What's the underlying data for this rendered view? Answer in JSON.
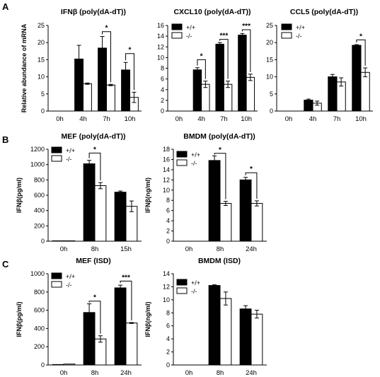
{
  "panel_labels": [
    "A",
    "B",
    "C"
  ],
  "legend": {
    "wt": "+/+",
    "ko": "-/-"
  },
  "colors": {
    "wt": "#000000",
    "ko": "#ffffff",
    "axis": "#000000"
  },
  "chart_data": [
    {
      "id": "a1",
      "type": "bar",
      "panel": "A",
      "title": "IFNβ (poly(dA-dT))",
      "ylabel": "Relative abundance of mRNA",
      "categories": [
        "0h",
        "4h",
        "7h",
        "10h"
      ],
      "ylim": [
        0,
        25
      ],
      "yticks": [
        0,
        5,
        10,
        15,
        20,
        25
      ],
      "series": [
        {
          "name": "+/+",
          "values": [
            0,
            15.2,
            18.4,
            12.0
          ],
          "errors": [
            0,
            4.0,
            3.4,
            2.2
          ]
        },
        {
          "name": "-/-",
          "values": [
            0,
            8.0,
            7.6,
            4.0
          ],
          "errors": [
            0,
            0.2,
            0.2,
            1.5
          ]
        }
      ],
      "significance": [
        {
          "category": "7h",
          "label": "*",
          "level": 23.2
        },
        {
          "category": "10h",
          "label": "*",
          "level": 16.8
        }
      ],
      "legend_shown": false
    },
    {
      "id": "a2",
      "type": "bar",
      "panel": "A",
      "title": "CXCL10 (poly(dA-dT))",
      "ylabel": "",
      "categories": [
        "0h",
        "4h",
        "7h",
        "10h"
      ],
      "ylim": [
        0,
        16
      ],
      "yticks": [
        0,
        2,
        4,
        6,
        8,
        10,
        12,
        14,
        16
      ],
      "series": [
        {
          "name": "+/+",
          "values": [
            0,
            7.7,
            12.5,
            14.2
          ],
          "errors": [
            0,
            0.4,
            0.3,
            0.3
          ]
        },
        {
          "name": "-/-",
          "values": [
            0,
            5.0,
            5.0,
            6.3
          ],
          "errors": [
            0,
            0.6,
            0.6,
            0.6
          ]
        }
      ],
      "significance": [
        {
          "category": "4h",
          "label": "*",
          "level": 9.6
        },
        {
          "category": "7h",
          "label": "***",
          "level": 13.4
        },
        {
          "category": "10h",
          "label": "***",
          "level": 15.2
        }
      ],
      "legend_shown": true
    },
    {
      "id": "a3",
      "type": "bar",
      "panel": "A",
      "title": "CCL5 (poly(dA-dT))",
      "ylabel": "",
      "categories": [
        "0h",
        "4h",
        "7h",
        "10h"
      ],
      "ylim": [
        0,
        25
      ],
      "yticks": [
        0,
        5,
        10,
        15,
        20,
        25
      ],
      "series": [
        {
          "name": "+/+",
          "values": [
            0,
            3.2,
            10.0,
            19.2
          ],
          "errors": [
            0,
            0.3,
            0.7,
            0.2
          ]
        },
        {
          "name": "-/-",
          "values": [
            0,
            2.3,
            8.5,
            11.3
          ],
          "errors": [
            0,
            0.6,
            1.2,
            1.3
          ]
        }
      ],
      "significance": [
        {
          "category": "10h",
          "label": "*",
          "level": 20.8
        }
      ],
      "legend_shown": true
    },
    {
      "id": "b1",
      "type": "bar",
      "panel": "B",
      "title": "MEF (poly(dA-dT))",
      "ylabel": "IFNβ(pg/ml)",
      "categories": [
        "0h",
        "8h",
        "15h"
      ],
      "ylim": [
        0,
        1200
      ],
      "yticks": [
        0,
        200,
        400,
        600,
        800,
        1000,
        1200
      ],
      "series": [
        {
          "name": "+/+",
          "values": [
            5,
            1010,
            640
          ],
          "errors": [
            0,
            45,
            15
          ]
        },
        {
          "name": "-/-",
          "values": [
            5,
            725,
            455
          ],
          "errors": [
            0,
            40,
            70
          ]
        }
      ],
      "significance": [
        {
          "category": "8h",
          "label": "*",
          "level": 1150
        }
      ],
      "legend_shown": true
    },
    {
      "id": "b2",
      "type": "bar",
      "panel": "B",
      "title": "BMDM (poly(dA-dT))",
      "ylabel": "IFNβ(ng/ml)",
      "categories": [
        "0h",
        "8h",
        "24h"
      ],
      "ylim": [
        0,
        18
      ],
      "yticks": [
        0,
        2,
        4,
        6,
        8,
        10,
        12,
        14,
        16,
        18
      ],
      "series": [
        {
          "name": "+/+",
          "values": [
            0,
            15.8,
            12.0
          ],
          "errors": [
            0,
            0.9,
            0.5
          ]
        },
        {
          "name": "-/-",
          "values": [
            0,
            7.4,
            7.4
          ],
          "errors": [
            0,
            0.4,
            0.5
          ]
        }
      ],
      "significance": [
        {
          "category": "8h",
          "label": "*",
          "level": 17.2
        },
        {
          "category": "24h",
          "label": "*",
          "level": 13.4
        }
      ],
      "legend_shown": true
    },
    {
      "id": "c1",
      "type": "bar",
      "panel": "C",
      "title": "MEF (ISD)",
      "ylabel": "IFNβ(pg/ml)",
      "categories": [
        "0h",
        "8h",
        "24h"
      ],
      "ylim": [
        0,
        1000
      ],
      "yticks": [
        0,
        200,
        400,
        600,
        800,
        1000
      ],
      "series": [
        {
          "name": "+/+",
          "values": [
            5,
            575,
            845
          ],
          "errors": [
            0,
            95,
            30
          ]
        },
        {
          "name": "-/-",
          "values": [
            10,
            285,
            460
          ],
          "errors": [
            0,
            35,
            5
          ]
        }
      ],
      "significance": [
        {
          "category": "8h",
          "label": "*",
          "level": 700
        },
        {
          "category": "24h",
          "label": "***",
          "level": 920
        }
      ],
      "legend_shown": true
    },
    {
      "id": "c2",
      "type": "bar",
      "panel": "C",
      "title": "BMDM (ISD)",
      "ylabel": "IFNβ(ng/ml)",
      "categories": [
        "0h",
        "8h",
        "24h"
      ],
      "ylim": [
        0,
        14
      ],
      "yticks": [
        0,
        2,
        4,
        6,
        8,
        10,
        12,
        14
      ],
      "series": [
        {
          "name": "+/+",
          "values": [
            0,
            12.2,
            8.6
          ],
          "errors": [
            0,
            0.1,
            0.5
          ]
        },
        {
          "name": "-/-",
          "values": [
            0,
            10.2,
            7.8
          ],
          "errors": [
            0,
            1.0,
            0.6
          ]
        }
      ],
      "significance": [],
      "legend_shown": true
    }
  ]
}
